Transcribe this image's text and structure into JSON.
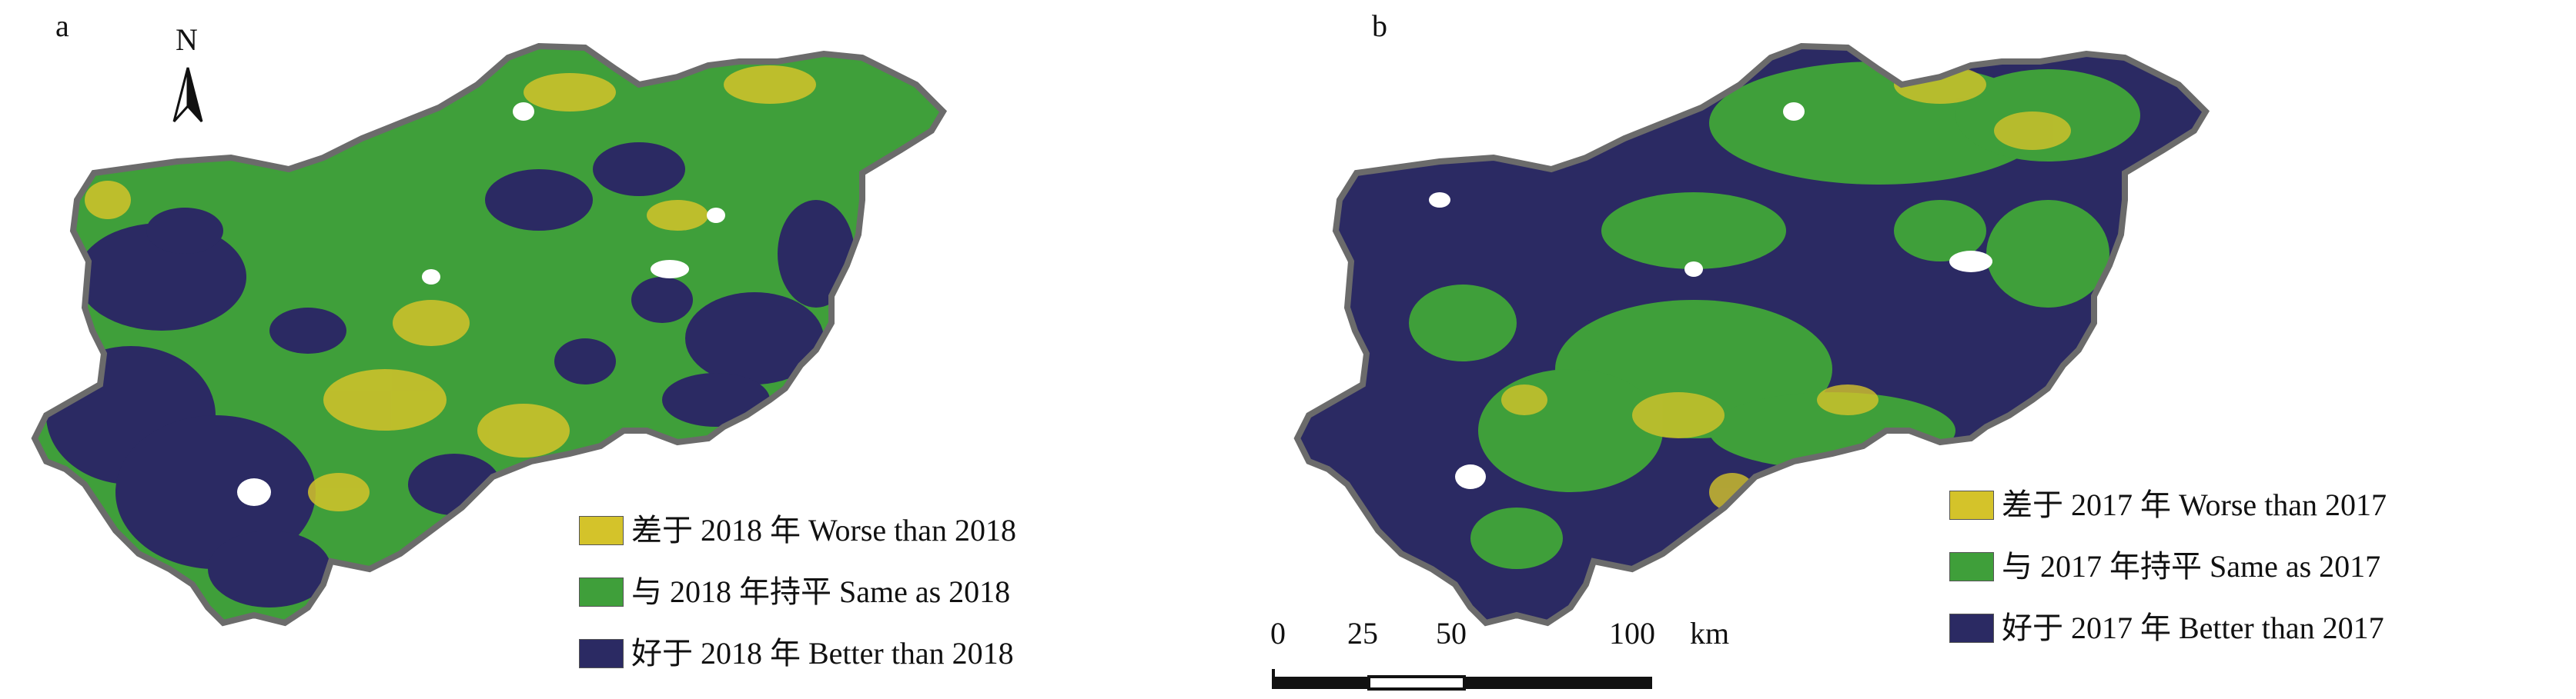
{
  "panels": [
    {
      "letter": "a",
      "legend": [
        {
          "label": "差于 2018 年 Worse than 2018",
          "color": "#d4c32a"
        },
        {
          "label": "与 2018 年持平 Same as 2018",
          "color": "#3f9f3a"
        },
        {
          "label": "好于 2018 年 Better than 2018",
          "color": "#2b2a63"
        }
      ]
    },
    {
      "letter": "b",
      "legend": [
        {
          "label": "差于 2017 年 Worse than 2017",
          "color": "#d4c32a"
        },
        {
          "label": "与 2017 年持平 Same as 2017",
          "color": "#3f9f3a"
        },
        {
          "label": "好于 2017 年 Better than 2017",
          "color": "#2b2a63"
        }
      ]
    }
  ],
  "north_arrow": {
    "label": "N",
    "icon": "north-arrow-icon"
  },
  "scale_bar": {
    "ticks": [
      "0",
      "25",
      "50",
      "100"
    ],
    "unit": "km"
  },
  "colors": {
    "worse": "#d4c32a",
    "same": "#3f9f3a",
    "better": "#2b2a63",
    "outline": "#6b6b6b"
  }
}
